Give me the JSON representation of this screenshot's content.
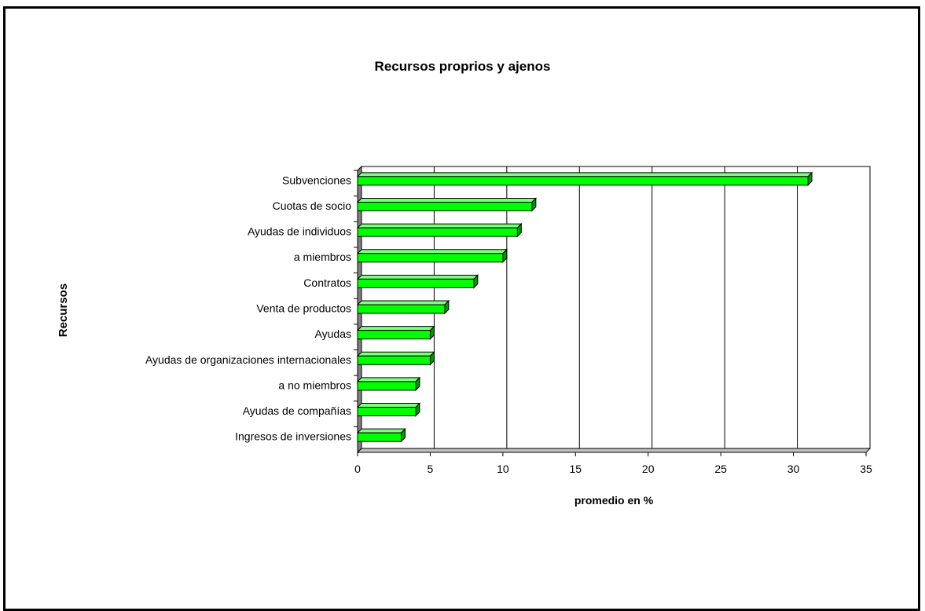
{
  "chart_data": {
    "type": "bar",
    "orientation": "horizontal",
    "title": "Recursos proprios y ajenos",
    "xlabel": "promedio en %",
    "ylabel": "Recursos",
    "xlim": [
      0,
      35
    ],
    "xticks": [
      0,
      5,
      10,
      15,
      20,
      25,
      30,
      35
    ],
    "grid": true,
    "bar_color": "#00ff00",
    "categories": [
      "Subvenciones",
      "Cuotas de socio",
      "Ayudas de individuos",
      "a miembros",
      "Contratos",
      "Venta de productos",
      "Ayudas",
      "Ayudas de organizaciones internacionales",
      "a no miembros",
      "Ayudas de compañías",
      "Ingresos de inversiones"
    ],
    "values": [
      31,
      12,
      11,
      10,
      8,
      6,
      5,
      5,
      4,
      4,
      3
    ]
  }
}
